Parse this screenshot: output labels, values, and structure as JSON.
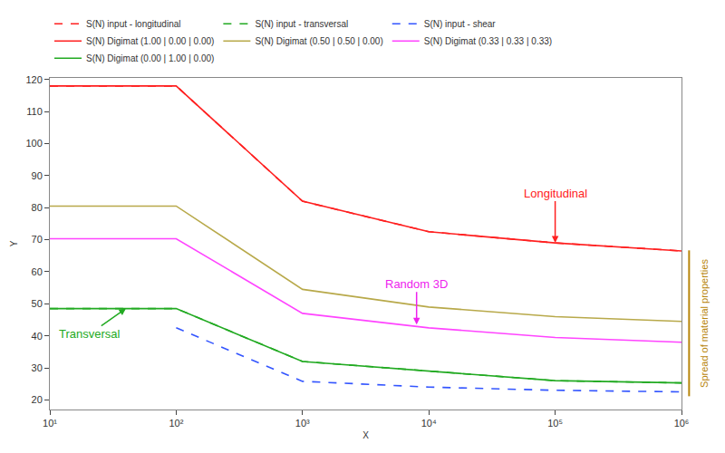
{
  "chart_data": {
    "type": "line",
    "x_label": "X",
    "y_label": "Y",
    "log": "x",
    "grid": false,
    "legend": "top",
    "x": [
      10,
      100,
      1000,
      10000,
      100000,
      1000000
    ],
    "xlim": [
      10,
      1000000
    ],
    "xticks": [
      {
        "value": 10,
        "label": "10¹"
      },
      {
        "value": 100,
        "label": "10²"
      },
      {
        "value": 1000,
        "label": "10³"
      },
      {
        "value": 10000,
        "label": "10⁴"
      },
      {
        "value": 100000,
        "label": "10⁵"
      },
      {
        "value": 1000000,
        "label": "10⁶"
      }
    ],
    "ylim": [
      17,
      120.5
    ],
    "yticks": [
      20,
      30,
      40,
      50,
      60,
      70,
      80,
      90,
      100,
      110,
      120
    ],
    "series": [
      {
        "name": "S(N) input - longitudinal",
        "color": "#ff2020",
        "line_style": "dash",
        "values": [
          118,
          118,
          82,
          72.5,
          69,
          66.5
        ]
      },
      {
        "name": "S(N) input - transversal",
        "color": "#22aa22",
        "line_style": "dash",
        "values": [
          48.5,
          48.5,
          32,
          29,
          26,
          25.3
        ]
      },
      {
        "name": "S(N) input - shear",
        "color": "#3355ff",
        "line_style": "dash",
        "values": [
          null,
          42.5,
          25.8,
          24,
          23,
          22.5
        ]
      },
      {
        "name": "S(N) Digimat (1.00 | 0.00 | 0.00)",
        "color": "#ff2020",
        "line_style": "solid",
        "values": [
          118,
          118,
          82,
          72.5,
          69,
          66.5
        ]
      },
      {
        "name": "S(N) Digimat (0.50 | 0.50 | 0.00)",
        "color": "#b8a94a",
        "line_style": "solid",
        "values": [
          80.5,
          80.5,
          54.5,
          49,
          46,
          44.5
        ]
      },
      {
        "name": "S(N) Digimat (0.33 | 0.33 | 0.33)",
        "color": "#ff44ff",
        "line_style": "solid",
        "values": [
          70.3,
          70.3,
          47,
          42.5,
          39.5,
          38
        ]
      },
      {
        "name": "S(N) Digimat (0.00 | 1.00 | 0.00)",
        "color": "#22aa22",
        "line_style": "solid",
        "values": [
          48.5,
          48.5,
          32,
          29,
          26,
          25.3
        ]
      }
    ],
    "annotations": [
      {
        "text": "Longitudinal",
        "color": "#ff2020",
        "x": 100000,
        "y": 69
      },
      {
        "text": "Random 3D",
        "color": "#ee22ee",
        "x": 8000,
        "y": 43.5
      },
      {
        "text": "Transversal",
        "color": "#22aa22",
        "x": 40,
        "y": 48.5
      },
      {
        "text": "Spread of material properties",
        "color": "#b8860b",
        "y": 44
      }
    ]
  }
}
